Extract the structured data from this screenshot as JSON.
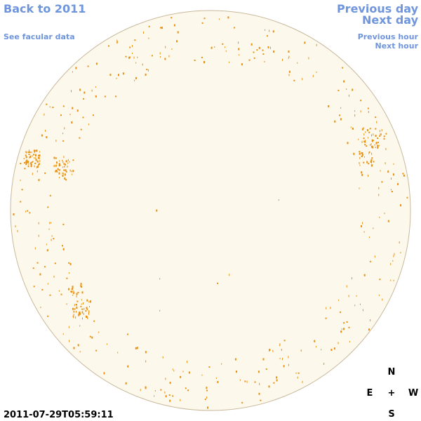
{
  "nav": {
    "back": "Back to 2011",
    "facular": "See facular data",
    "previous_day": "Previous day",
    "next_day": "Next day",
    "previous_hour": "Previous hour",
    "next_hour": "Next hour"
  },
  "timestamp": "2011-07-29T05:59:11",
  "compass": {
    "north": "N",
    "east": "E",
    "center": "+",
    "west": "W",
    "south": "S"
  }
}
